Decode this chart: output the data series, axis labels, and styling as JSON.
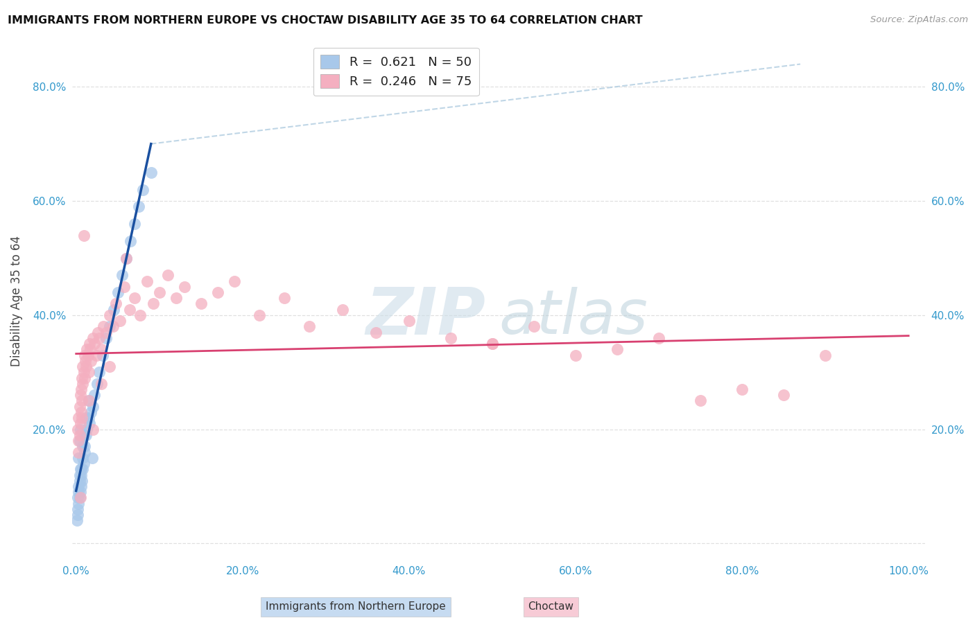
{
  "title": "IMMIGRANTS FROM NORTHERN EUROPE VS CHOCTAW DISABILITY AGE 35 TO 64 CORRELATION CHART",
  "source": "Source: ZipAtlas.com",
  "ylabel": "Disability Age 35 to 64",
  "xlim": [
    -0.005,
    1.02
  ],
  "ylim": [
    -0.03,
    0.88
  ],
  "xticks": [
    0.0,
    0.2,
    0.4,
    0.6,
    0.8,
    1.0
  ],
  "xticklabels": [
    "0.0%",
    "20.0%",
    "40.0%",
    "60.0%",
    "80.0%",
    "100.0%"
  ],
  "yticks": [
    0.0,
    0.2,
    0.4,
    0.6,
    0.8
  ],
  "yticklabels": [
    "",
    "20.0%",
    "40.0%",
    "60.0%",
    "80.0%"
  ],
  "right_yticks": [
    0.2,
    0.4,
    0.6,
    0.8
  ],
  "right_yticklabels": [
    "20.0%",
    "40.0%",
    "60.0%",
    "80.0%"
  ],
  "blue_R": 0.621,
  "blue_N": 50,
  "pink_R": 0.246,
  "pink_N": 75,
  "blue_scatter_color": "#a8c8ea",
  "pink_scatter_color": "#f4afc0",
  "blue_line_color": "#1a50a0",
  "pink_line_color": "#d84070",
  "blue_dash_color": "#b0cce0",
  "tick_color": "#3399cc",
  "grid_color": "#e0e0e0",
  "legend_label_blue": "R =  0.621   N = 50",
  "legend_label_pink": "R =  0.246   N = 75",
  "bottom_legend_blue": "Immigrants from Northern Europe",
  "bottom_legend_pink": "Choctaw",
  "blue_x": [
    0.001,
    0.002,
    0.002,
    0.003,
    0.003,
    0.003,
    0.004,
    0.004,
    0.004,
    0.005,
    0.005,
    0.006,
    0.006,
    0.007,
    0.008,
    0.008,
    0.009,
    0.01,
    0.01,
    0.012,
    0.013,
    0.015,
    0.016,
    0.018,
    0.02,
    0.022,
    0.025,
    0.028,
    0.032,
    0.036,
    0.04,
    0.045,
    0.05,
    0.055,
    0.06,
    0.065,
    0.07,
    0.075,
    0.08,
    0.09,
    0.002,
    0.003,
    0.004,
    0.005,
    0.006,
    0.008,
    0.01,
    0.012,
    0.015,
    0.019
  ],
  "blue_y": [
    0.04,
    0.06,
    0.08,
    0.07,
    0.09,
    0.1,
    0.08,
    0.11,
    0.12,
    0.09,
    0.13,
    0.1,
    0.12,
    0.11,
    0.13,
    0.15,
    0.14,
    0.16,
    0.17,
    0.19,
    0.2,
    0.22,
    0.21,
    0.23,
    0.24,
    0.26,
    0.28,
    0.3,
    0.33,
    0.36,
    0.38,
    0.41,
    0.44,
    0.47,
    0.5,
    0.53,
    0.56,
    0.59,
    0.62,
    0.65,
    0.05,
    0.15,
    0.18,
    0.2,
    0.13,
    0.17,
    0.19,
    0.22,
    0.25,
    0.15
  ],
  "pink_x": [
    0.002,
    0.003,
    0.003,
    0.004,
    0.004,
    0.005,
    0.005,
    0.006,
    0.006,
    0.007,
    0.007,
    0.008,
    0.008,
    0.009,
    0.01,
    0.01,
    0.011,
    0.012,
    0.013,
    0.014,
    0.015,
    0.016,
    0.017,
    0.018,
    0.02,
    0.022,
    0.024,
    0.026,
    0.028,
    0.03,
    0.033,
    0.036,
    0.04,
    0.044,
    0.048,
    0.053,
    0.058,
    0.064,
    0.07,
    0.077,
    0.085,
    0.093,
    0.1,
    0.11,
    0.12,
    0.13,
    0.15,
    0.17,
    0.19,
    0.22,
    0.25,
    0.28,
    0.32,
    0.36,
    0.4,
    0.45,
    0.5,
    0.55,
    0.6,
    0.65,
    0.7,
    0.75,
    0.8,
    0.85,
    0.9,
    0.003,
    0.005,
    0.007,
    0.009,
    0.015,
    0.02,
    0.03,
    0.04,
    0.06,
    0.5
  ],
  "pink_y": [
    0.2,
    0.22,
    0.18,
    0.24,
    0.19,
    0.26,
    0.21,
    0.23,
    0.27,
    0.25,
    0.29,
    0.28,
    0.31,
    0.3,
    0.29,
    0.33,
    0.32,
    0.31,
    0.34,
    0.33,
    0.3,
    0.35,
    0.34,
    0.32,
    0.36,
    0.35,
    0.33,
    0.37,
    0.36,
    0.34,
    0.38,
    0.37,
    0.4,
    0.38,
    0.42,
    0.39,
    0.45,
    0.41,
    0.43,
    0.4,
    0.46,
    0.42,
    0.44,
    0.47,
    0.43,
    0.45,
    0.42,
    0.44,
    0.46,
    0.4,
    0.43,
    0.38,
    0.41,
    0.37,
    0.39,
    0.36,
    0.35,
    0.38,
    0.33,
    0.34,
    0.36,
    0.25,
    0.27,
    0.26,
    0.33,
    0.16,
    0.08,
    0.22,
    0.54,
    0.25,
    0.2,
    0.28,
    0.31,
    0.5,
    0.35
  ]
}
